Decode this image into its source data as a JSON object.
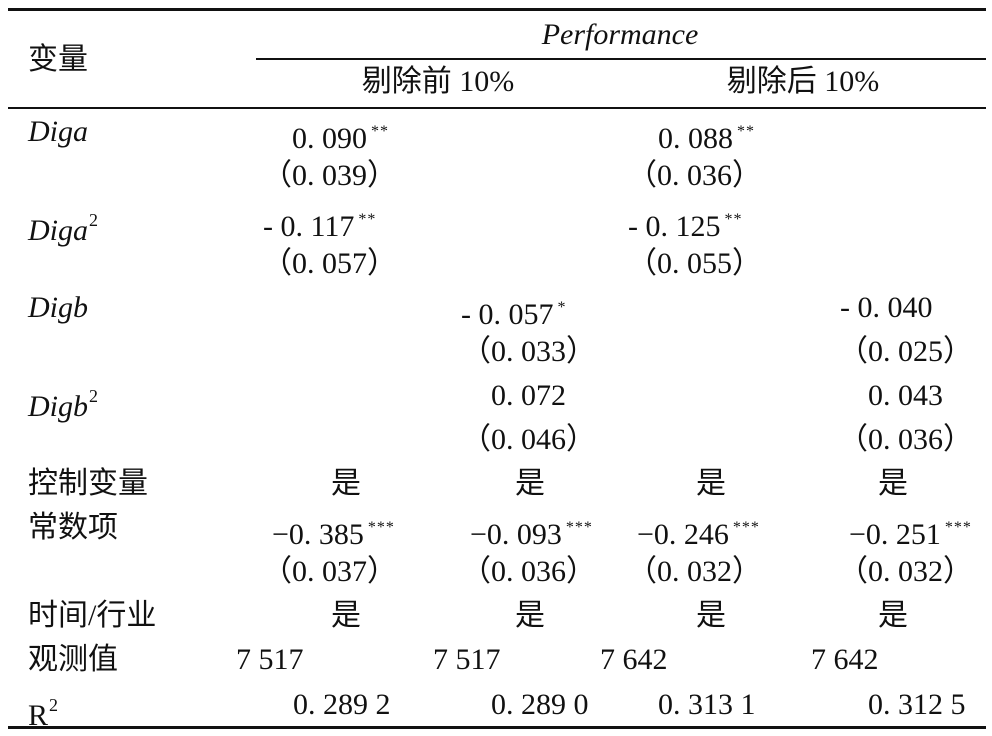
{
  "header": {
    "variable_label": "变量",
    "group_label": "Performance",
    "sub_left": "剔除前 10%",
    "sub_right": "剔除后 10%"
  },
  "rows": {
    "diga": {
      "label": "Diga",
      "c1": "0. 090",
      "c1_sig": "**",
      "c1_se": "（0. 039）",
      "c3": "0. 088",
      "c3_sig": "**",
      "c3_se": "（0. 036）"
    },
    "diga2": {
      "label": "Diga",
      "label_sup": "2",
      "c1": "- 0. 117",
      "c1_sig": "**",
      "c1_se": "（0. 057）",
      "c3": "- 0. 125",
      "c3_sig": "**",
      "c3_se": "（0. 055）"
    },
    "digb": {
      "label": "Digb",
      "c2": "- 0. 057",
      "c2_sig": "*",
      "c2_se": "（0. 033）",
      "c4": "- 0. 040",
      "c4_se": "（0. 025）"
    },
    "digb2": {
      "label": "Digb",
      "label_sup": "2",
      "c2": "0. 072",
      "c2_se": "（0. 046）",
      "c4": "0. 043",
      "c4_se": "（0. 036）"
    },
    "controls": {
      "label": "控制变量",
      "c1": "是",
      "c2": "是",
      "c3": "是",
      "c4": "是"
    },
    "constant": {
      "label": "常数项",
      "c1": "−0. 385",
      "c1_sig": "***",
      "c1_se": "（0. 037）",
      "c2": "−0. 093",
      "c2_sig": "***",
      "c2_se": "（0. 036）",
      "c3": "−0. 246",
      "c3_sig": "***",
      "c3_se": "（0. 032）",
      "c4": "−0. 251",
      "c4_sig": "***",
      "c4_se": "（0. 032）"
    },
    "time_industry": {
      "label": "时间/行业",
      "c1": "是",
      "c2": "是",
      "c3": "是",
      "c4": "是"
    },
    "observations": {
      "label": "观测值",
      "c1": "7 517",
      "c2": "7 517",
      "c3": "7 642",
      "c4": "7 642"
    },
    "r2": {
      "label": "R",
      "label_sup": "2",
      "c1": "0. 289 2",
      "c2": "0. 289 0",
      "c3": "0. 313 1",
      "c4": "0. 312 5"
    }
  }
}
